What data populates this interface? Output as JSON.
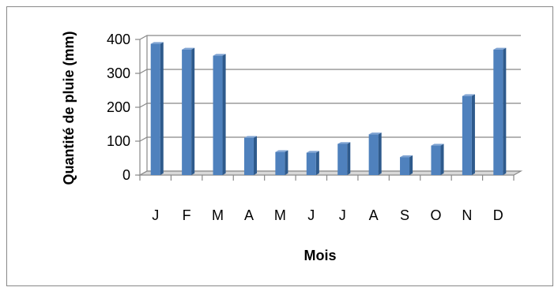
{
  "chart_data": {
    "type": "bar",
    "categories": [
      "J",
      "F",
      "M",
      "A",
      "M",
      "J",
      "J",
      "A",
      "S",
      "O",
      "N",
      "D"
    ],
    "values": [
      387,
      370,
      352,
      110,
      68,
      66,
      92,
      120,
      53,
      87,
      233,
      370
    ],
    "xlabel": "Mois",
    "ylabel": "Quantité de pluie (mm)",
    "ylim": [
      0,
      400
    ],
    "yticks": [
      0,
      100,
      200,
      300,
      400
    ],
    "grid": true,
    "legend": "none",
    "colors": {
      "bar_front": "#4F81BD",
      "bar_side": "#2E5A8C",
      "bar_top": "#7FA3D2",
      "gridline": "#888888",
      "floor": "#8A8A8A"
    }
  }
}
